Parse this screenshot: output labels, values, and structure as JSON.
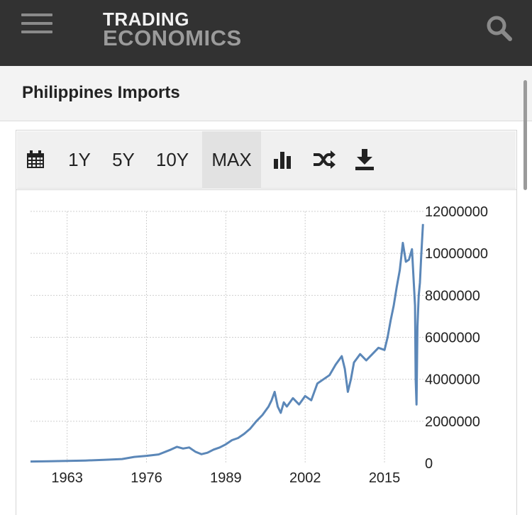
{
  "header": {
    "logo_line1": "TRADING",
    "logo_line2": "ECONOMICS",
    "menu_icon": "hamburger-menu-icon",
    "search_icon": "search-icon"
  },
  "page": {
    "title": "Philippines Imports"
  },
  "toolbar": {
    "calendar_icon": "calendar-icon",
    "ranges": [
      "1Y",
      "5Y",
      "10Y",
      "MAX"
    ],
    "active_range": "MAX",
    "chart_type_icon": "bar-chart-icon",
    "compare_icon": "shuffle-icon",
    "download_icon": "download-icon"
  },
  "colors": {
    "line": "#5b87b8",
    "header_bg": "#323232",
    "grid": "#cfcfcf"
  },
  "chart_data": {
    "type": "line",
    "title": "",
    "xlabel": "",
    "ylabel": "",
    "xlim": [
      1957,
      2021.5
    ],
    "ylim": [
      0,
      12000000
    ],
    "x_ticks": [
      "1963",
      "1976",
      "1989",
      "2002",
      "2015"
    ],
    "y_ticks": [
      "12000000",
      "10000000",
      "8000000",
      "6000000",
      "4000000",
      "2000000",
      "0"
    ],
    "grid": true,
    "series": [
      {
        "name": "",
        "x": [
          1957,
          1960,
          1963,
          1966,
          1969,
          1972,
          1974,
          1976,
          1978,
          1980,
          1981,
          1982,
          1983,
          1984,
          1985,
          1986,
          1987,
          1988,
          1989,
          1990,
          1991,
          1992,
          1993,
          1994,
          1995,
          1996,
          1996.5,
          1997,
          1997.5,
          1998,
          1998.5,
          1999,
          2000,
          2001,
          2002,
          2003,
          2004,
          2005,
          2006,
          2007,
          2008,
          2008.5,
          2009,
          2009.5,
          2010,
          2011,
          2012,
          2013,
          2014,
          2015,
          2015.5,
          2016,
          2016.5,
          2017,
          2017.5,
          2018,
          2018.5,
          2019,
          2019.5,
          2020,
          2020.1,
          2020.25,
          2020.4,
          2020.6,
          2020.8,
          2021,
          2021.3
        ],
        "values": [
          80000,
          90000,
          110000,
          130000,
          160000,
          200000,
          300000,
          350000,
          420000,
          650000,
          780000,
          700000,
          750000,
          550000,
          430000,
          500000,
          650000,
          750000,
          900000,
          1100000,
          1200000,
          1400000,
          1650000,
          2000000,
          2300000,
          2700000,
          3000000,
          3400000,
          2700000,
          2400000,
          2900000,
          2700000,
          3100000,
          2800000,
          3200000,
          3000000,
          3800000,
          4000000,
          4200000,
          4700000,
          5100000,
          4500000,
          3400000,
          4000000,
          4800000,
          5200000,
          4900000,
          5200000,
          5500000,
          5400000,
          6000000,
          6800000,
          7500000,
          8400000,
          9200000,
          10500000,
          9600000,
          9700000,
          10200000,
          7500000,
          4000000,
          2800000,
          6500000,
          8000000,
          8600000,
          9800000,
          11400000
        ]
      }
    ]
  }
}
